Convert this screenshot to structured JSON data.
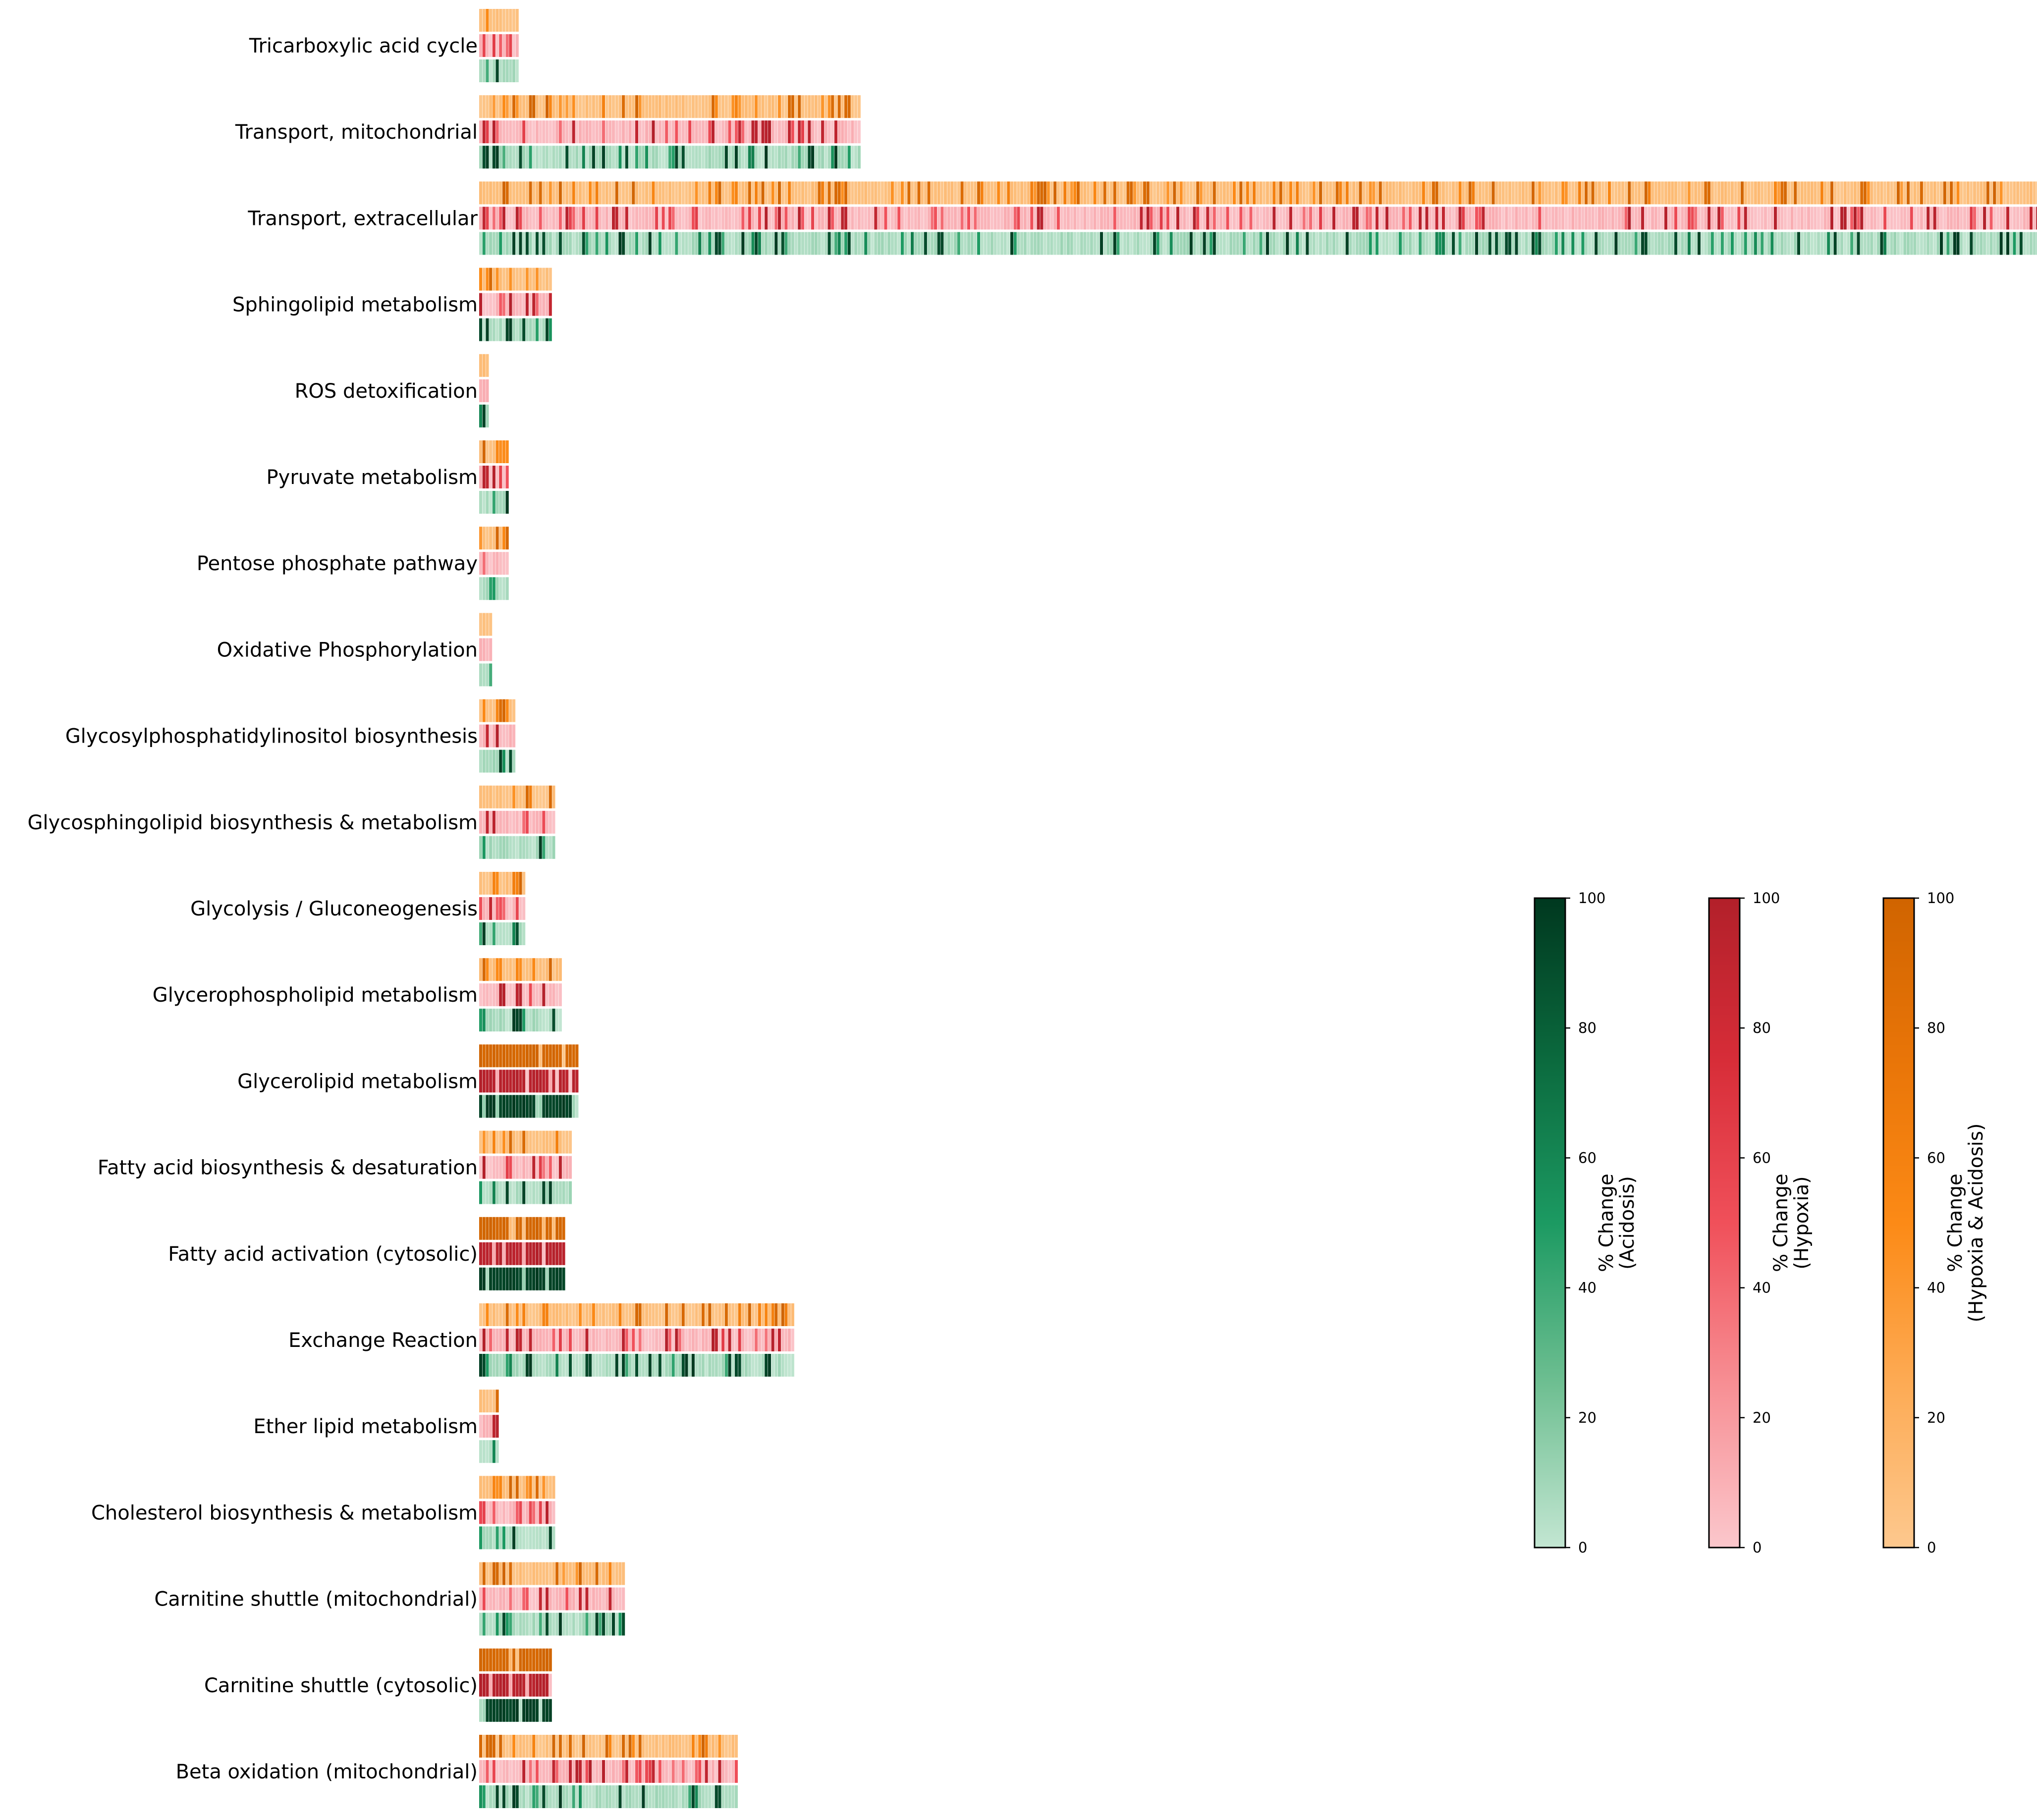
{
  "chart_data": {
    "type": "heatmap",
    "title": "",
    "xlabel": "",
    "ylabel": "",
    "grid": false,
    "rows_per_pathway": [
      "Hypoxia & Acidosis",
      "Hypoxia",
      "Acidosis"
    ],
    "pathways": [
      {
        "name": "Tricarboxylic acid cycle",
        "n_reactions": 12,
        "seed": 11
      },
      {
        "name": "Transport, mitochondrial",
        "n_reactions": 115,
        "seed": 23
      },
      {
        "name": "Transport, extracellular",
        "n_reactions": 470,
        "seed": 37
      },
      {
        "name": "Sphingolipid metabolism",
        "n_reactions": 22,
        "seed": 41
      },
      {
        "name": "ROS detoxification",
        "n_reactions": 3,
        "seed": 53
      },
      {
        "name": "Pyruvate metabolism",
        "n_reactions": 9,
        "seed": 61
      },
      {
        "name": "Pentose phosphate pathway",
        "n_reactions": 9,
        "seed": 71
      },
      {
        "name": "Oxidative Phosphorylation",
        "n_reactions": 4,
        "seed": 83
      },
      {
        "name": "Glycosylphosphatidylinositol biosynthesis",
        "n_reactions": 11,
        "seed": 97
      },
      {
        "name": "Glycosphingolipid biosynthesis & metabolism",
        "n_reactions": 23,
        "seed": 101
      },
      {
        "name": "Glycolysis / Gluconeogenesis",
        "n_reactions": 14,
        "seed": 113
      },
      {
        "name": "Glycerophospholipid metabolism",
        "n_reactions": 25,
        "seed": 127
      },
      {
        "name": "Glycerolipid metabolism",
        "n_reactions": 30,
        "seed": 131,
        "mostly_high": true
      },
      {
        "name": "Fatty acid biosynthesis & desaturation",
        "n_reactions": 28,
        "seed": 139
      },
      {
        "name": "Fatty acid activation (cytosolic)",
        "n_reactions": 26,
        "seed": 149,
        "mostly_high": true
      },
      {
        "name": "Exchange Reaction",
        "n_reactions": 95,
        "seed": 151
      },
      {
        "name": "Ether lipid metabolism",
        "n_reactions": 6,
        "seed": 163
      },
      {
        "name": "Cholesterol biosynthesis & metabolism",
        "n_reactions": 23,
        "seed": 173
      },
      {
        "name": "Carnitine shuttle (mitochondrial)",
        "n_reactions": 44,
        "seed": 181
      },
      {
        "name": "Carnitine shuttle (cytosolic)",
        "n_reactions": 22,
        "seed": 191,
        "mostly_high": true
      },
      {
        "name": "Beta oxidation (mitochondrial)",
        "n_reactions": 78,
        "seed": 199
      }
    ],
    "colorbars": [
      {
        "name": "acidosis",
        "title_line1": "% Change",
        "title_line2": "(Acidosis)",
        "range": [
          0,
          100
        ],
        "ticks": [
          "0",
          "20",
          "40",
          "60",
          "80",
          "100"
        ],
        "colors": [
          "#c3e6d2",
          "#6fbf92",
          "#1c9a62",
          "#0b6a3e",
          "#00381f"
        ]
      },
      {
        "name": "hypoxia",
        "title_line1": "% Change",
        "title_line2": "(Hypoxia)",
        "range": [
          0,
          100
        ],
        "ticks": [
          "0",
          "20",
          "40",
          "60",
          "80",
          "100"
        ],
        "colors": [
          "#fbc7cc",
          "#f78f94",
          "#f0505a",
          "#d72d38",
          "#b2202a"
        ]
      },
      {
        "name": "hypoxia-acidosis",
        "title_line1": "% Change",
        "title_line2": "(Hypoxia & Acidosis)",
        "range": [
          0,
          100
        ],
        "ticks": [
          "0",
          "20",
          "40",
          "60",
          "80",
          "100"
        ],
        "colors": [
          "#fdc88e",
          "#fdab55",
          "#fc8a16",
          "#e97508",
          "#d06400"
        ]
      }
    ]
  }
}
